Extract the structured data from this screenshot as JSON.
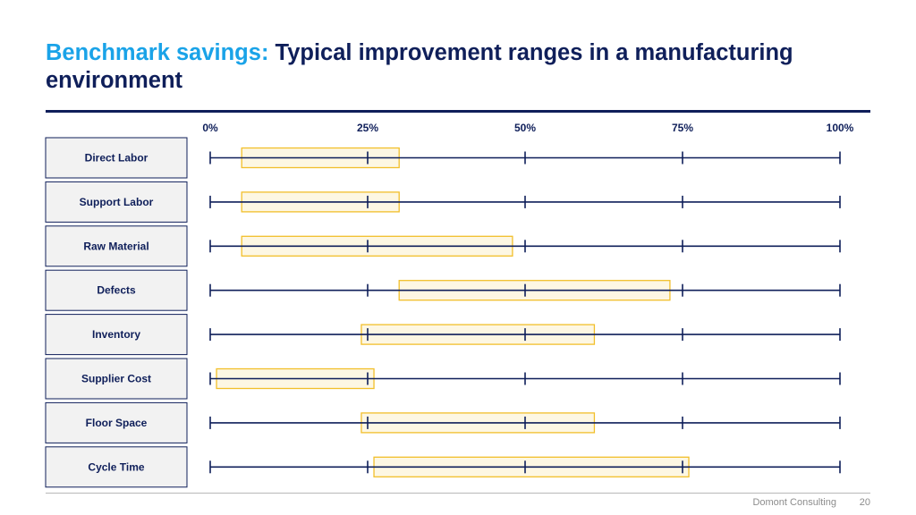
{
  "slide": {
    "title_highlight": "Benchmark savings:",
    "title_rest": " Typical improvement ranges in a manufacturing environment",
    "footer_brand": "Domont Consulting",
    "page_number": "20"
  },
  "colors": {
    "navy": "#0f1f5a",
    "accent_blue": "#1aa3e8",
    "range_fill": "#fdf7e3",
    "range_border": "#f2bf2b",
    "label_box_fill": "#f2f2f2"
  },
  "chart_data": {
    "type": "bar",
    "orientation": "horizontal-range",
    "categories": [
      "Direct Labor",
      "Support Labor",
      "Raw Material",
      "Defects",
      "Inventory",
      "Supplier Cost",
      "Floor Space",
      "Cycle Time"
    ],
    "series": [
      {
        "ranges": [
          [
            5,
            30
          ],
          [
            5,
            30
          ],
          [
            5,
            48
          ],
          [
            30,
            73
          ],
          [
            24,
            61
          ],
          [
            1,
            26
          ],
          [
            24,
            61
          ],
          [
            26,
            76
          ]
        ]
      }
    ],
    "x_ticks": [
      0,
      25,
      50,
      75,
      100
    ],
    "x_tick_labels": [
      "0%",
      "25%",
      "50%",
      "75%",
      "100%"
    ],
    "xlim": [
      0,
      100
    ],
    "unit": "%",
    "grid": false,
    "legend": "none"
  }
}
